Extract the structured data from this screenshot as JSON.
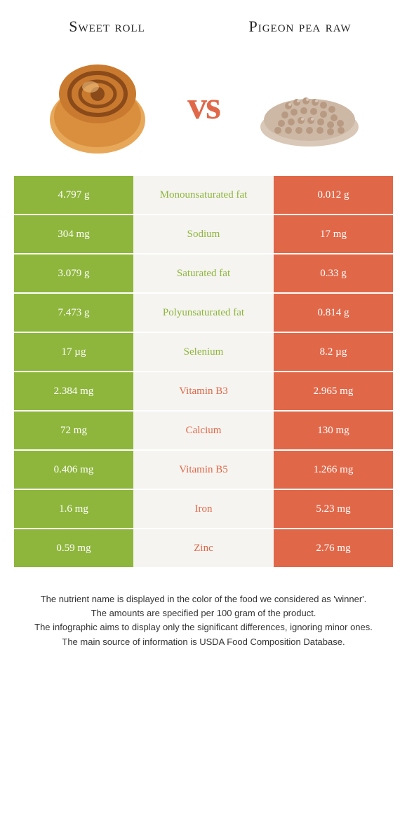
{
  "header": {
    "left_title": "Sweet roll",
    "right_title": "Pigeon pea raw",
    "vs": "vs"
  },
  "colors": {
    "left": "#8eb63c",
    "right": "#e06849",
    "mid_bg": "#f5f4f0",
    "text": "#333333"
  },
  "rows": [
    {
      "nutrient": "Monounsaturated fat",
      "left": "4.797 g",
      "right": "0.012 g",
      "winner": "left"
    },
    {
      "nutrient": "Sodium",
      "left": "304 mg",
      "right": "17 mg",
      "winner": "left"
    },
    {
      "nutrient": "Saturated fat",
      "left": "3.079 g",
      "right": "0.33 g",
      "winner": "left"
    },
    {
      "nutrient": "Polyunsaturated fat",
      "left": "7.473 g",
      "right": "0.814 g",
      "winner": "left"
    },
    {
      "nutrient": "Selenium",
      "left": "17 µg",
      "right": "8.2 µg",
      "winner": "left"
    },
    {
      "nutrient": "Vitamin B3",
      "left": "2.384 mg",
      "right": "2.965 mg",
      "winner": "right"
    },
    {
      "nutrient": "Calcium",
      "left": "72 mg",
      "right": "130 mg",
      "winner": "right"
    },
    {
      "nutrient": "Vitamin B5",
      "left": "0.406 mg",
      "right": "1.266 mg",
      "winner": "right"
    },
    {
      "nutrient": "Iron",
      "left": "1.6 mg",
      "right": "5.23 mg",
      "winner": "right"
    },
    {
      "nutrient": "Zinc",
      "left": "0.59 mg",
      "right": "2.76 mg",
      "winner": "right"
    }
  ],
  "footer": {
    "line1": "The nutrient name is displayed in the color of the food we considered as 'winner'.",
    "line2": "The amounts are specified per 100 gram of the product.",
    "line3": "The infographic aims to display only the significant differences, ignoring minor ones.",
    "line4": "The main source of information is USDA Food Composition Database."
  }
}
